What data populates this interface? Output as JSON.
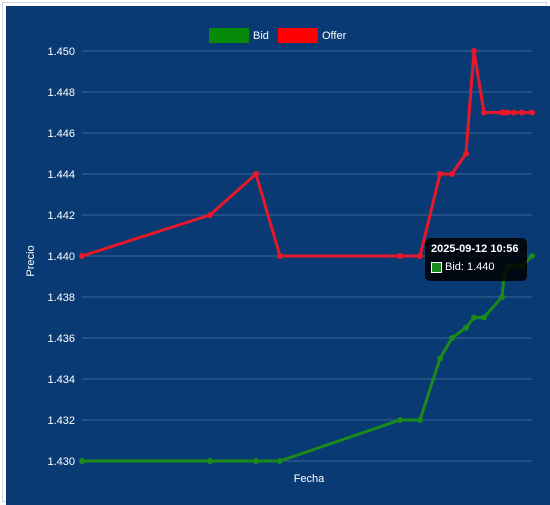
{
  "colors": {
    "background": "#0a3a73",
    "grid": "#6b8fba",
    "bid": "#1a8a1a",
    "offer": "#e8182a",
    "legend_bid": "#078a07",
    "legend_offer": "#ff0000"
  },
  "chart_data": {
    "type": "line",
    "xlabel": "Fecha",
    "ylabel": "Precio",
    "ylim": [
      1.43,
      1.45
    ],
    "y_ticks": [
      "1.430",
      "1.432",
      "1.434",
      "1.436",
      "1.438",
      "1.440",
      "1.442",
      "1.444",
      "1.446",
      "1.448",
      "1.450"
    ],
    "grid": true,
    "legend_position": "top-center",
    "x": [
      0,
      64,
      87,
      99,
      159,
      169,
      179,
      185,
      192,
      196,
      201,
      210,
      211,
      213,
      216,
      220,
      225
    ],
    "series": [
      {
        "name": "Bid",
        "color": "#1a8a1a",
        "values": [
          1.43,
          1.43,
          1.43,
          1.43,
          1.432,
          1.432,
          1.435,
          1.436,
          1.4365,
          1.437,
          1.437,
          1.438,
          1.439,
          1.4395,
          1.4395,
          1.4395,
          1.44
        ]
      },
      {
        "name": "Offer",
        "color": "#e8182a",
        "values": [
          1.44,
          1.442,
          1.444,
          1.44,
          1.44,
          1.44,
          1.444,
          1.444,
          1.445,
          1.45,
          1.447,
          1.447,
          1.447,
          1.447,
          1.447,
          1.447,
          1.447
        ]
      }
    ]
  },
  "tooltip": {
    "title": "2025-09-12 10:56",
    "label": "Bid: 1.440",
    "swatch_color": "#1a8a1a"
  }
}
